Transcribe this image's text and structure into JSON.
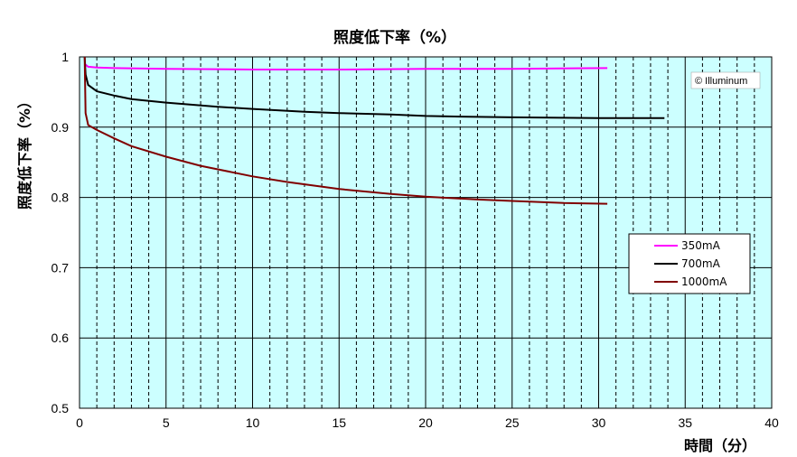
{
  "chart_data": {
    "type": "line",
    "title": "照度低下率（%）",
    "xlabel": "時間（分）",
    "ylabel": "照度低下率（%）",
    "xlim": [
      0,
      40
    ],
    "ylim": [
      0.5,
      1.0
    ],
    "x_ticks": [
      "0",
      "5",
      "10",
      "15",
      "20",
      "25",
      "30",
      "35",
      "40"
    ],
    "y_ticks": [
      "0.5",
      "0.6",
      "0.7",
      "0.8",
      "0.9",
      "1"
    ],
    "grid": true,
    "minor_x_gridlines_every": 1,
    "background_color": "#ccffff",
    "legend_position": "right",
    "watermark": "© Illuminum",
    "series": [
      {
        "name": "350mA",
        "color": "#ff00ff",
        "x": [
          0.3,
          0.5,
          1,
          2,
          5,
          10,
          15,
          20,
          25,
          30.5
        ],
        "y": [
          0.99,
          0.986,
          0.985,
          0.984,
          0.983,
          0.982,
          0.982,
          0.983,
          0.983,
          0.984
        ]
      },
      {
        "name": "700mA",
        "color": "#000000",
        "x": [
          0.3,
          0.35,
          0.5,
          1,
          2,
          3,
          5,
          8,
          10,
          13,
          15,
          18,
          20,
          22,
          25,
          30,
          33.8
        ],
        "y": [
          1.0,
          0.975,
          0.96,
          0.951,
          0.945,
          0.94,
          0.935,
          0.929,
          0.926,
          0.922,
          0.92,
          0.918,
          0.916,
          0.915,
          0.914,
          0.913,
          0.913
        ]
      },
      {
        "name": "1000mA",
        "color": "#800000",
        "x": [
          0.3,
          0.35,
          0.5,
          1,
          2,
          3,
          5,
          7,
          10,
          12,
          15,
          18,
          20,
          23,
          25,
          28,
          30.5
        ],
        "y": [
          1.0,
          0.92,
          0.903,
          0.896,
          0.884,
          0.873,
          0.858,
          0.845,
          0.83,
          0.822,
          0.812,
          0.805,
          0.801,
          0.797,
          0.795,
          0.792,
          0.791
        ]
      }
    ]
  }
}
